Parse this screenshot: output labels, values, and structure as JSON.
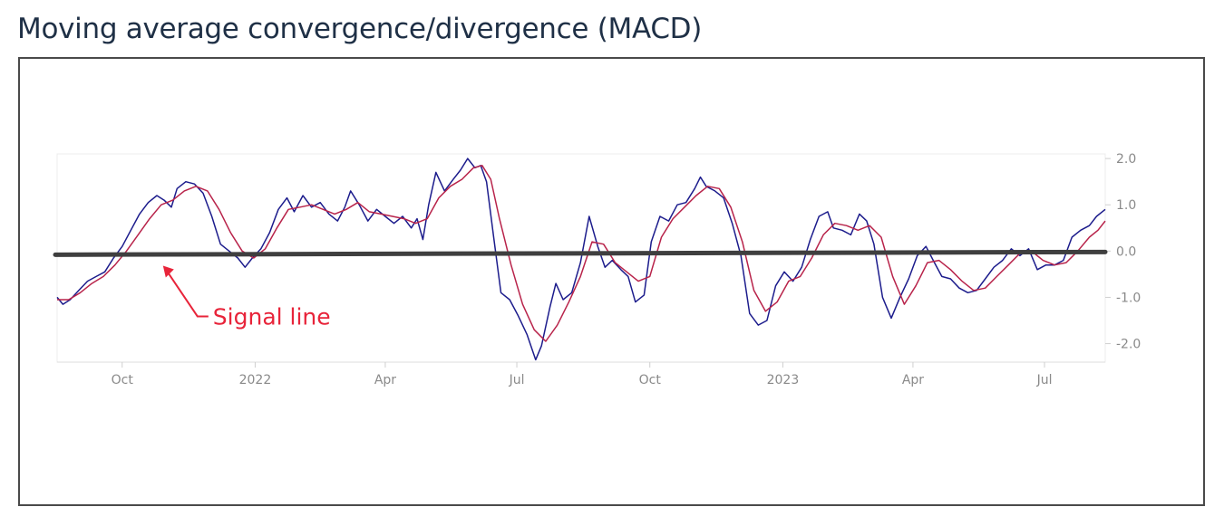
{
  "page": {
    "title": "Moving average convergence/divergence (MACD)"
  },
  "colors": {
    "macd": "#1c1c8c",
    "signal": "#b8234a",
    "zero_line": "#3f3f3f",
    "annotation": "#e8243a",
    "grid": "#ececec",
    "tick": "#8a8a8a"
  },
  "chart_data": {
    "type": "line",
    "title": "Moving average convergence/divergence (MACD)",
    "xlabel": "",
    "ylabel": "",
    "x_ticks": [
      {
        "label": "Oct",
        "date": "2021-10-01"
      },
      {
        "label": "2022",
        "date": "2022-01-01"
      },
      {
        "label": "Apr",
        "date": "2022-04-01"
      },
      {
        "label": "Jul",
        "date": "2022-07-01"
      },
      {
        "label": "Oct",
        "date": "2022-10-01"
      },
      {
        "label": "2023",
        "date": "2023-01-01"
      },
      {
        "label": "Apr",
        "date": "2023-04-01"
      },
      {
        "label": "Jul",
        "date": "2023-07-01"
      }
    ],
    "y_ticks": [
      {
        "label": "2.0",
        "value": 2.0
      },
      {
        "label": "1.0",
        "value": 1.0
      },
      {
        "label": "0.0",
        "value": 0.0
      },
      {
        "label": "-1.0",
        "value": -1.0
      },
      {
        "label": "-2.0",
        "value": -2.0
      }
    ],
    "xlim": [
      "2021-08-17",
      "2023-08-12"
    ],
    "ylim": [
      -2.4,
      2.1
    ],
    "y_axis_side": "right",
    "grid": false,
    "series": [
      {
        "name": "",
        "color": "#1c1c8c",
        "points": [
          [
            "2021-08-17",
            -1.0
          ],
          [
            "2021-08-21",
            -1.15
          ],
          [
            "2021-08-26",
            -1.05
          ],
          [
            "2021-09-01",
            -0.85
          ],
          [
            "2021-09-07",
            -0.65
          ],
          [
            "2021-09-13",
            -0.55
          ],
          [
            "2021-09-19",
            -0.45
          ],
          [
            "2021-09-25",
            -0.15
          ],
          [
            "2021-10-01",
            0.1
          ],
          [
            "2021-10-07",
            0.45
          ],
          [
            "2021-10-13",
            0.8
          ],
          [
            "2021-10-19",
            1.05
          ],
          [
            "2021-10-25",
            1.2
          ],
          [
            "2021-10-30",
            1.1
          ],
          [
            "2021-11-04",
            0.95
          ],
          [
            "2021-11-08",
            1.35
          ],
          [
            "2021-11-14",
            1.5
          ],
          [
            "2021-11-20",
            1.45
          ],
          [
            "2021-11-26",
            1.25
          ],
          [
            "2021-12-02",
            0.75
          ],
          [
            "2021-12-08",
            0.15
          ],
          [
            "2021-12-14",
            0.0
          ],
          [
            "2021-12-20",
            -0.15
          ],
          [
            "2021-12-25",
            -0.35
          ],
          [
            "2021-12-30",
            -0.15
          ],
          [
            "2022-01-05",
            0.05
          ],
          [
            "2022-01-11",
            0.4
          ],
          [
            "2022-01-17",
            0.9
          ],
          [
            "2022-01-23",
            1.15
          ],
          [
            "2022-01-28",
            0.85
          ],
          [
            "2022-02-03",
            1.2
          ],
          [
            "2022-02-09",
            0.95
          ],
          [
            "2022-02-15",
            1.05
          ],
          [
            "2022-02-21",
            0.8
          ],
          [
            "2022-02-27",
            0.65
          ],
          [
            "2022-03-04",
            0.95
          ],
          [
            "2022-03-08",
            1.3
          ],
          [
            "2022-03-14",
            1.0
          ],
          [
            "2022-03-20",
            0.65
          ],
          [
            "2022-03-26",
            0.9
          ],
          [
            "2022-04-01",
            0.75
          ],
          [
            "2022-04-07",
            0.6
          ],
          [
            "2022-04-13",
            0.75
          ],
          [
            "2022-04-19",
            0.5
          ],
          [
            "2022-04-23",
            0.7
          ],
          [
            "2022-04-27",
            0.25
          ],
          [
            "2022-05-01",
            1.0
          ],
          [
            "2022-05-06",
            1.7
          ],
          [
            "2022-05-12",
            1.3
          ],
          [
            "2022-05-18",
            1.55
          ],
          [
            "2022-05-23",
            1.75
          ],
          [
            "2022-05-28",
            2.0
          ],
          [
            "2022-06-02",
            1.8
          ],
          [
            "2022-06-06",
            1.85
          ],
          [
            "2022-06-10",
            1.5
          ],
          [
            "2022-06-15",
            0.3
          ],
          [
            "2022-06-20",
            -0.9
          ],
          [
            "2022-06-26",
            -1.05
          ],
          [
            "2022-07-02",
            -1.4
          ],
          [
            "2022-07-08",
            -1.8
          ],
          [
            "2022-07-14",
            -2.35
          ],
          [
            "2022-07-18",
            -2.05
          ],
          [
            "2022-07-24",
            -1.2
          ],
          [
            "2022-07-28",
            -0.7
          ],
          [
            "2022-08-02",
            -1.05
          ],
          [
            "2022-08-08",
            -0.9
          ],
          [
            "2022-08-14",
            -0.25
          ],
          [
            "2022-08-20",
            0.75
          ],
          [
            "2022-08-26",
            0.1
          ],
          [
            "2022-08-31",
            -0.35
          ],
          [
            "2022-09-05",
            -0.2
          ],
          [
            "2022-09-11",
            -0.4
          ],
          [
            "2022-09-16",
            -0.55
          ],
          [
            "2022-09-21",
            -1.1
          ],
          [
            "2022-09-27",
            -0.95
          ],
          [
            "2022-10-02",
            0.2
          ],
          [
            "2022-10-08",
            0.75
          ],
          [
            "2022-10-14",
            0.65
          ],
          [
            "2022-10-20",
            1.0
          ],
          [
            "2022-10-26",
            1.05
          ],
          [
            "2022-11-01",
            1.35
          ],
          [
            "2022-11-05",
            1.6
          ],
          [
            "2022-11-09",
            1.4
          ],
          [
            "2022-11-15",
            1.3
          ],
          [
            "2022-11-21",
            1.15
          ],
          [
            "2022-11-27",
            0.6
          ],
          [
            "2022-12-03",
            -0.1
          ],
          [
            "2022-12-09",
            -1.35
          ],
          [
            "2022-12-15",
            -1.6
          ],
          [
            "2022-12-21",
            -1.5
          ],
          [
            "2022-12-27",
            -0.75
          ],
          [
            "2023-01-02",
            -0.45
          ],
          [
            "2023-01-08",
            -0.65
          ],
          [
            "2023-01-14",
            -0.35
          ],
          [
            "2023-01-20",
            0.25
          ],
          [
            "2023-01-26",
            0.75
          ],
          [
            "2023-02-01",
            0.85
          ],
          [
            "2023-02-05",
            0.5
          ],
          [
            "2023-02-11",
            0.45
          ],
          [
            "2023-02-17",
            0.35
          ],
          [
            "2023-02-23",
            0.8
          ],
          [
            "2023-02-28",
            0.65
          ],
          [
            "2023-03-05",
            0.15
          ],
          [
            "2023-03-11",
            -1.0
          ],
          [
            "2023-03-17",
            -1.45
          ],
          [
            "2023-03-23",
            -1.0
          ],
          [
            "2023-03-29",
            -0.6
          ],
          [
            "2023-04-04",
            -0.1
          ],
          [
            "2023-04-10",
            0.1
          ],
          [
            "2023-04-15",
            -0.2
          ],
          [
            "2023-04-21",
            -0.55
          ],
          [
            "2023-04-27",
            -0.6
          ],
          [
            "2023-05-03",
            -0.8
          ],
          [
            "2023-05-09",
            -0.9
          ],
          [
            "2023-05-15",
            -0.85
          ],
          [
            "2023-05-21",
            -0.6
          ],
          [
            "2023-05-27",
            -0.35
          ],
          [
            "2023-06-02",
            -0.2
          ],
          [
            "2023-06-08",
            0.05
          ],
          [
            "2023-06-14",
            -0.1
          ],
          [
            "2023-06-20",
            0.05
          ],
          [
            "2023-06-26",
            -0.4
          ],
          [
            "2023-07-02",
            -0.3
          ],
          [
            "2023-07-08",
            -0.3
          ],
          [
            "2023-07-14",
            -0.2
          ],
          [
            "2023-07-20",
            0.3
          ],
          [
            "2023-07-26",
            0.45
          ],
          [
            "2023-08-01",
            0.55
          ],
          [
            "2023-08-06",
            0.75
          ],
          [
            "2023-08-12",
            0.9
          ]
        ]
      },
      {
        "name": "Signal line",
        "color": "#b8234a",
        "points": [
          [
            "2021-08-17",
            -1.05
          ],
          [
            "2021-08-25",
            -1.05
          ],
          [
            "2021-09-02",
            -0.9
          ],
          [
            "2021-09-10",
            -0.7
          ],
          [
            "2021-09-18",
            -0.55
          ],
          [
            "2021-09-26",
            -0.3
          ],
          [
            "2021-10-04",
            0.0
          ],
          [
            "2021-10-12",
            0.35
          ],
          [
            "2021-10-20",
            0.7
          ],
          [
            "2021-10-28",
            1.0
          ],
          [
            "2021-11-05",
            1.1
          ],
          [
            "2021-11-13",
            1.3
          ],
          [
            "2021-11-21",
            1.4
          ],
          [
            "2021-11-29",
            1.3
          ],
          [
            "2021-12-07",
            0.9
          ],
          [
            "2021-12-15",
            0.4
          ],
          [
            "2021-12-23",
            0.0
          ],
          [
            "2021-12-31",
            -0.15
          ],
          [
            "2022-01-08",
            0.05
          ],
          [
            "2022-01-16",
            0.5
          ],
          [
            "2022-01-24",
            0.9
          ],
          [
            "2022-02-01",
            0.95
          ],
          [
            "2022-02-09",
            1.0
          ],
          [
            "2022-02-17",
            0.9
          ],
          [
            "2022-02-25",
            0.8
          ],
          [
            "2022-03-05",
            0.9
          ],
          [
            "2022-03-13",
            1.05
          ],
          [
            "2022-03-21",
            0.85
          ],
          [
            "2022-03-29",
            0.8
          ],
          [
            "2022-04-06",
            0.75
          ],
          [
            "2022-04-14",
            0.7
          ],
          [
            "2022-04-22",
            0.6
          ],
          [
            "2022-04-30",
            0.7
          ],
          [
            "2022-05-08",
            1.15
          ],
          [
            "2022-05-16",
            1.4
          ],
          [
            "2022-05-24",
            1.55
          ],
          [
            "2022-06-01",
            1.8
          ],
          [
            "2022-06-07",
            1.85
          ],
          [
            "2022-06-13",
            1.55
          ],
          [
            "2022-06-19",
            0.7
          ],
          [
            "2022-06-27",
            -0.3
          ],
          [
            "2022-07-05",
            -1.15
          ],
          [
            "2022-07-13",
            -1.7
          ],
          [
            "2022-07-21",
            -1.95
          ],
          [
            "2022-07-29",
            -1.6
          ],
          [
            "2022-08-06",
            -1.1
          ],
          [
            "2022-08-14",
            -0.55
          ],
          [
            "2022-08-22",
            0.2
          ],
          [
            "2022-08-30",
            0.15
          ],
          [
            "2022-09-07",
            -0.25
          ],
          [
            "2022-09-15",
            -0.45
          ],
          [
            "2022-09-23",
            -0.65
          ],
          [
            "2022-10-01",
            -0.55
          ],
          [
            "2022-10-09",
            0.3
          ],
          [
            "2022-10-17",
            0.7
          ],
          [
            "2022-10-25",
            0.95
          ],
          [
            "2022-11-02",
            1.2
          ],
          [
            "2022-11-10",
            1.4
          ],
          [
            "2022-11-18",
            1.35
          ],
          [
            "2022-11-26",
            0.95
          ],
          [
            "2022-12-04",
            0.2
          ],
          [
            "2022-12-12",
            -0.85
          ],
          [
            "2022-12-20",
            -1.3
          ],
          [
            "2022-12-28",
            -1.1
          ],
          [
            "2023-01-05",
            -0.65
          ],
          [
            "2023-01-13",
            -0.55
          ],
          [
            "2023-01-21",
            -0.15
          ],
          [
            "2023-01-29",
            0.35
          ],
          [
            "2023-02-06",
            0.6
          ],
          [
            "2023-02-14",
            0.55
          ],
          [
            "2023-02-22",
            0.45
          ],
          [
            "2023-03-02",
            0.55
          ],
          [
            "2023-03-10",
            0.3
          ],
          [
            "2023-03-18",
            -0.55
          ],
          [
            "2023-03-26",
            -1.15
          ],
          [
            "2023-04-03",
            -0.75
          ],
          [
            "2023-04-11",
            -0.25
          ],
          [
            "2023-04-19",
            -0.2
          ],
          [
            "2023-04-27",
            -0.4
          ],
          [
            "2023-05-05",
            -0.65
          ],
          [
            "2023-05-13",
            -0.85
          ],
          [
            "2023-05-21",
            -0.8
          ],
          [
            "2023-05-29",
            -0.55
          ],
          [
            "2023-06-06",
            -0.3
          ],
          [
            "2023-06-14",
            -0.05
          ],
          [
            "2023-06-22",
            0.0
          ],
          [
            "2023-06-30",
            -0.2
          ],
          [
            "2023-07-08",
            -0.3
          ],
          [
            "2023-07-16",
            -0.25
          ],
          [
            "2023-07-24",
            0.0
          ],
          [
            "2023-08-01",
            0.3
          ],
          [
            "2023-08-07",
            0.45
          ],
          [
            "2023-08-12",
            0.65
          ]
        ]
      }
    ],
    "zero_line": {
      "value": 0.0
    },
    "annotations": [
      {
        "text": "Signal line",
        "arrow_to_date": "2021-10-28",
        "arrow_to_value": -0.1
      }
    ]
  }
}
